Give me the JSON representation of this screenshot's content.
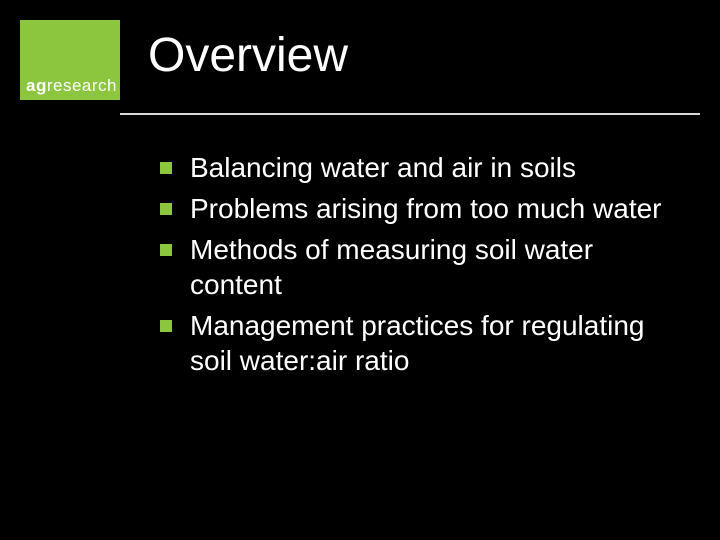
{
  "logo": {
    "part1": "ag",
    "part2": "research",
    "bg_color": "#8cc63f",
    "text_color": "#ffffff"
  },
  "title": "Overview",
  "title_color": "#ffffff",
  "title_fontsize": 48,
  "divider_color": "#d9d9d9",
  "background_color": "#000000",
  "bullets": {
    "marker_color": "#8cc63f",
    "text_color": "#ffffff",
    "fontsize": 28,
    "items": [
      "Balancing water and air in soils",
      "Problems arising from too much water",
      "Methods of measuring soil water content",
      "Management practices for regulating soil water:air ratio"
    ]
  }
}
